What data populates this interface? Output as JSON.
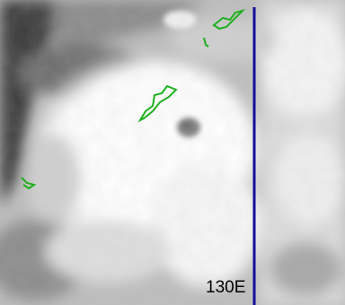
{
  "meridian": {
    "label": "130E"
  }
}
